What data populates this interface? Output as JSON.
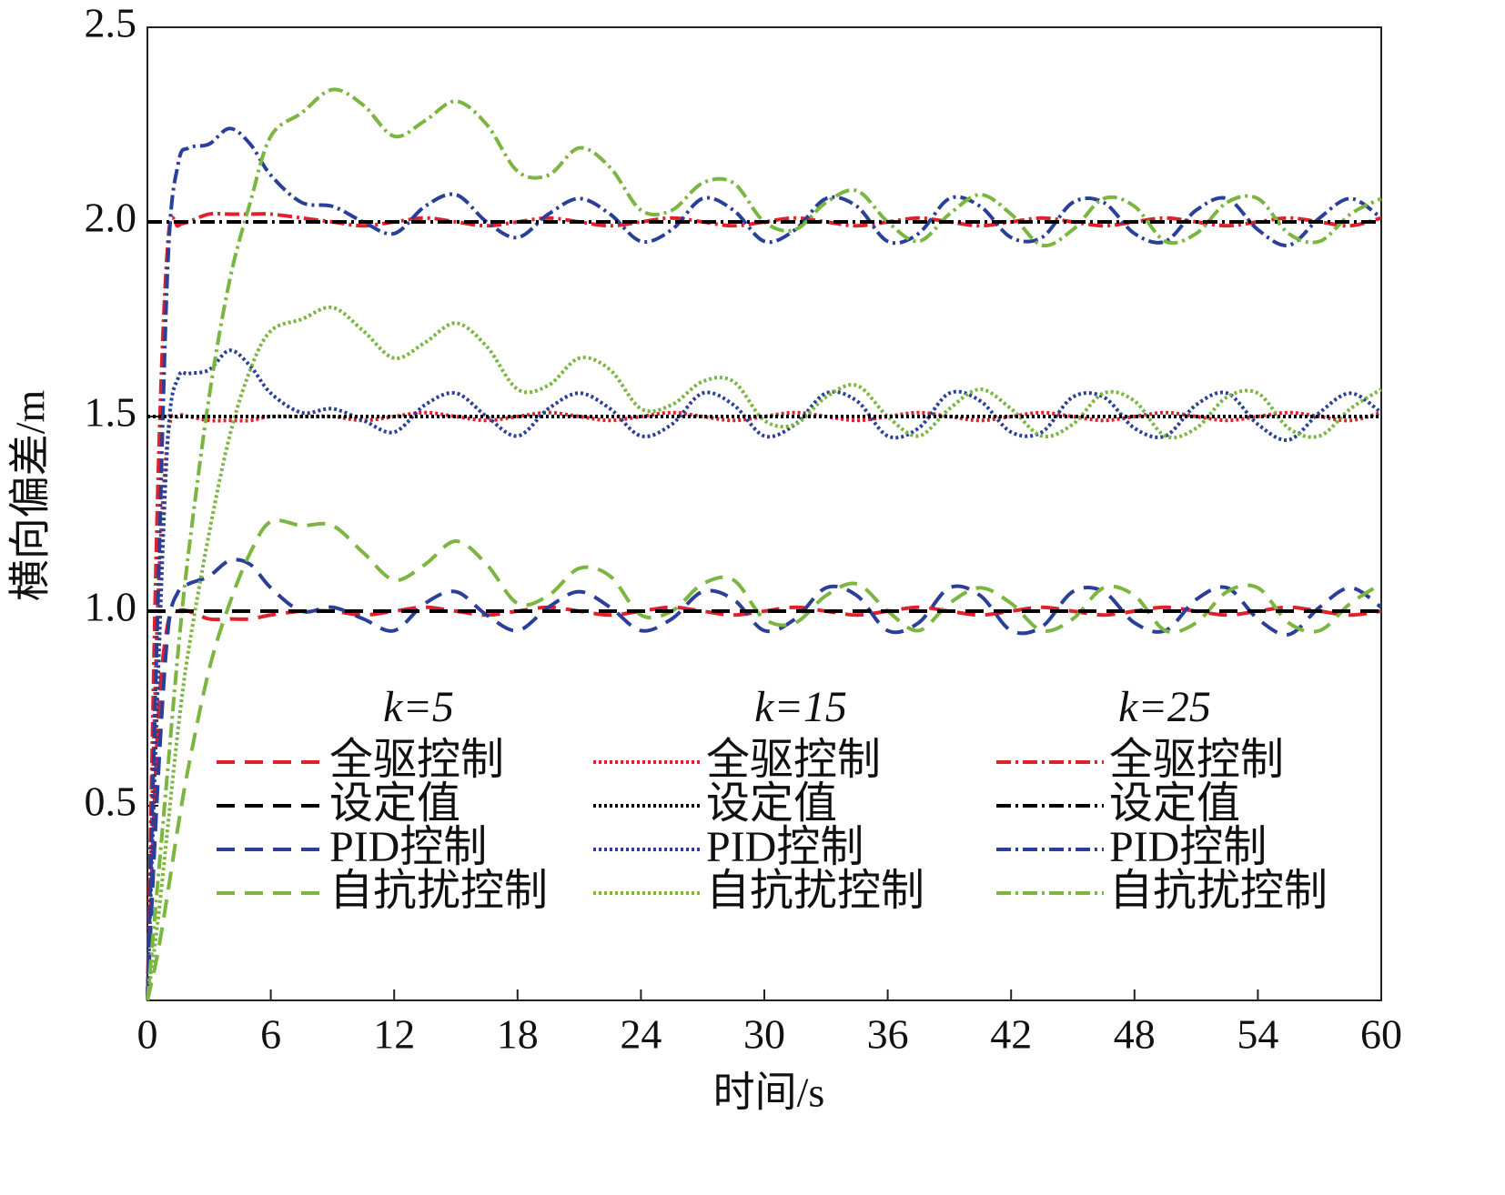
{
  "chart_data": {
    "type": "line",
    "xlabel": "时间/s",
    "ylabel": "横向偏差/m",
    "xlim": [
      0,
      60
    ],
    "ylim": [
      0,
      2.5
    ],
    "xticks": [
      0,
      6,
      12,
      18,
      24,
      30,
      36,
      42,
      48,
      54,
      60
    ],
    "yticks": [
      0.5,
      {
        "value": 1,
        "label": "1.0"
      },
      1.5,
      {
        "value": 2,
        "label": "2.0"
      },
      2.5
    ],
    "legend_titles": [
      "k=5",
      "k=15",
      "k=25"
    ],
    "x": [
      0,
      0.5,
      1,
      1.5,
      2,
      3,
      4,
      5,
      6,
      7.5,
      9,
      10.5,
      12,
      13.5,
      15,
      16.5,
      18,
      19.5,
      21,
      22.5,
      24,
      25.5,
      27,
      28.5,
      30,
      31.5,
      33,
      34.5,
      36,
      37.5,
      39,
      40.5,
      42,
      43.5,
      45,
      46.5,
      48,
      49.5,
      51,
      52.5,
      54,
      55.5,
      57,
      58.5,
      60
    ],
    "series": [
      {
        "name": "全驱控制",
        "color": "#e0202a",
        "dash": "dashed",
        "values": [
          0,
          0.7,
          0.97,
          1.0,
          1.0,
          0.98,
          0.98,
          0.98,
          0.99,
          1.0,
          1.0,
          0.99,
          1.0,
          1.01,
          1.0,
          0.99,
          1.0,
          1.01,
          1.0,
          0.99,
          1.0,
          1.01,
          1.0,
          0.99,
          1.0,
          1.01,
          1.0,
          0.99,
          1.0,
          1.01,
          1.0,
          0.99,
          1.0,
          1.01,
          1.0,
          0.99,
          1.0,
          1.01,
          1.0,
          0.99,
          1.0,
          1.01,
          1.0,
          0.99,
          1.0
        ]
      },
      {
        "name": "设定值",
        "color": "#000000",
        "dash": "dashed",
        "values": [
          1,
          1,
          1,
          1,
          1,
          1,
          1,
          1,
          1,
          1,
          1,
          1,
          1,
          1,
          1,
          1,
          1,
          1,
          1,
          1,
          1,
          1,
          1,
          1,
          1,
          1,
          1,
          1,
          1,
          1,
          1,
          1,
          1,
          1,
          1,
          1,
          1,
          1,
          1,
          1,
          1,
          1,
          1,
          1,
          1
        ]
      },
      {
        "name": "PID控制",
        "color": "#2a3f9a",
        "dash": "dashed",
        "values": [
          0,
          0.55,
          0.95,
          1.05,
          1.07,
          1.09,
          1.13,
          1.12,
          1.06,
          1.0,
          1.01,
          0.98,
          0.95,
          1.02,
          1.05,
          0.99,
          0.95,
          1.01,
          1.05,
          1.01,
          0.95,
          0.98,
          1.05,
          1.03,
          0.95,
          0.98,
          1.06,
          1.04,
          0.95,
          0.97,
          1.06,
          1.04,
          0.95,
          0.96,
          1.05,
          1.05,
          0.97,
          0.95,
          1.03,
          1.06,
          0.98,
          0.94,
          1.01,
          1.06,
          1.01
        ]
      },
      {
        "name": "自抗扰控制",
        "color": "#7ab640",
        "dash": "dashed",
        "values": [
          0,
          0.12,
          0.28,
          0.45,
          0.6,
          0.85,
          1.02,
          1.15,
          1.23,
          1.22,
          1.22,
          1.15,
          1.08,
          1.12,
          1.18,
          1.12,
          1.02,
          1.04,
          1.11,
          1.09,
          0.99,
          1.0,
          1.07,
          1.08,
          0.98,
          0.97,
          1.04,
          1.07,
          1.0,
          0.95,
          1.02,
          1.06,
          1.02,
          0.95,
          0.98,
          1.06,
          1.04,
          0.95,
          0.97,
          1.05,
          1.06,
          0.97,
          0.95,
          1.02,
          1.07
        ]
      },
      {
        "name": "全驱控制",
        "color": "#e0202a",
        "dash": "dotted",
        "values": [
          0,
          1.0,
          1.45,
          1.5,
          1.5,
          1.49,
          1.49,
          1.49,
          1.5,
          1.5,
          1.5,
          1.49,
          1.5,
          1.51,
          1.5,
          1.49,
          1.5,
          1.51,
          1.5,
          1.49,
          1.5,
          1.51,
          1.5,
          1.49,
          1.5,
          1.51,
          1.5,
          1.49,
          1.5,
          1.51,
          1.5,
          1.49,
          1.5,
          1.51,
          1.5,
          1.49,
          1.5,
          1.51,
          1.5,
          1.49,
          1.5,
          1.51,
          1.5,
          1.49,
          1.51
        ]
      },
      {
        "name": "设定值",
        "color": "#000000",
        "dash": "dotted",
        "values": [
          1.5,
          1.5,
          1.5,
          1.5,
          1.5,
          1.5,
          1.5,
          1.5,
          1.5,
          1.5,
          1.5,
          1.5,
          1.5,
          1.5,
          1.5,
          1.5,
          1.5,
          1.5,
          1.5,
          1.5,
          1.5,
          1.5,
          1.5,
          1.5,
          1.5,
          1.5,
          1.5,
          1.5,
          1.5,
          1.5,
          1.5,
          1.5,
          1.5,
          1.5,
          1.5,
          1.5,
          1.5,
          1.5,
          1.5,
          1.5,
          1.5,
          1.5,
          1.5,
          1.5,
          1.5
        ]
      },
      {
        "name": "PID控制",
        "color": "#2a3f9a",
        "dash": "dotted",
        "values": [
          0,
          0.8,
          1.45,
          1.6,
          1.61,
          1.62,
          1.67,
          1.63,
          1.56,
          1.51,
          1.52,
          1.49,
          1.46,
          1.53,
          1.56,
          1.5,
          1.45,
          1.52,
          1.56,
          1.52,
          1.45,
          1.48,
          1.56,
          1.53,
          1.45,
          1.48,
          1.56,
          1.54,
          1.45,
          1.47,
          1.56,
          1.54,
          1.46,
          1.46,
          1.55,
          1.55,
          1.47,
          1.45,
          1.53,
          1.56,
          1.48,
          1.44,
          1.51,
          1.56,
          1.51
        ]
      },
      {
        "name": "自抗扰控制",
        "color": "#7ab640",
        "dash": "dotted",
        "values": [
          0,
          0.2,
          0.45,
          0.7,
          0.9,
          1.2,
          1.45,
          1.62,
          1.72,
          1.75,
          1.78,
          1.72,
          1.65,
          1.69,
          1.74,
          1.68,
          1.57,
          1.58,
          1.65,
          1.62,
          1.52,
          1.53,
          1.59,
          1.59,
          1.49,
          1.48,
          1.55,
          1.58,
          1.5,
          1.45,
          1.52,
          1.57,
          1.52,
          1.45,
          1.48,
          1.56,
          1.54,
          1.45,
          1.47,
          1.55,
          1.56,
          1.47,
          1.45,
          1.52,
          1.57
        ]
      },
      {
        "name": "全驱控制",
        "color": "#e0202a",
        "dash": "dashdot",
        "values": [
          0,
          1.3,
          1.95,
          1.99,
          2.0,
          2.02,
          2.02,
          2.02,
          2.02,
          2.01,
          2.0,
          1.99,
          2.0,
          2.01,
          2.0,
          1.99,
          2.0,
          2.01,
          2.0,
          1.99,
          2.0,
          2.01,
          2.0,
          1.99,
          2.0,
          2.01,
          2.0,
          1.99,
          2.0,
          2.01,
          2.0,
          1.99,
          2.0,
          2.01,
          2.0,
          1.99,
          2.0,
          2.01,
          2.0,
          1.99,
          2.0,
          2.01,
          2.0,
          1.99,
          2.01
        ]
      },
      {
        "name": "设定值",
        "color": "#000000",
        "dash": "dashdot",
        "values": [
          2,
          2,
          2,
          2,
          2,
          2,
          2,
          2,
          2,
          2,
          2,
          2,
          2,
          2,
          2,
          2,
          2,
          2,
          2,
          2,
          2,
          2,
          2,
          2,
          2,
          2,
          2,
          2,
          2,
          2,
          2,
          2,
          2,
          2,
          2,
          2,
          2,
          2,
          2,
          2,
          2,
          2,
          2,
          2,
          2
        ]
      },
      {
        "name": "PID控制",
        "color": "#2a3f9a",
        "dash": "dashdot",
        "values": [
          0,
          1.0,
          1.9,
          2.15,
          2.19,
          2.2,
          2.24,
          2.2,
          2.12,
          2.05,
          2.04,
          2.0,
          1.97,
          2.04,
          2.07,
          2.0,
          1.96,
          2.02,
          2.06,
          2.02,
          1.95,
          1.98,
          2.06,
          2.03,
          1.95,
          1.98,
          2.06,
          2.04,
          1.95,
          1.97,
          2.06,
          2.04,
          1.96,
          1.96,
          2.05,
          2.05,
          1.97,
          1.95,
          2.03,
          2.06,
          1.98,
          1.94,
          2.01,
          2.06,
          2.01
        ]
      },
      {
        "name": "自抗扰控制",
        "color": "#7ab640",
        "dash": "dashdot",
        "values": [
          0,
          0.3,
          0.6,
          0.9,
          1.15,
          1.55,
          1.85,
          2.05,
          2.22,
          2.28,
          2.34,
          2.3,
          2.22,
          2.26,
          2.31,
          2.25,
          2.13,
          2.12,
          2.19,
          2.14,
          2.03,
          2.03,
          2.1,
          2.1,
          2.0,
          1.98,
          2.05,
          2.08,
          2.0,
          1.95,
          2.02,
          2.07,
          2.02,
          1.94,
          1.98,
          2.06,
          2.04,
          1.95,
          1.97,
          2.05,
          2.06,
          1.97,
          1.95,
          2.02,
          2.06
        ]
      }
    ]
  }
}
